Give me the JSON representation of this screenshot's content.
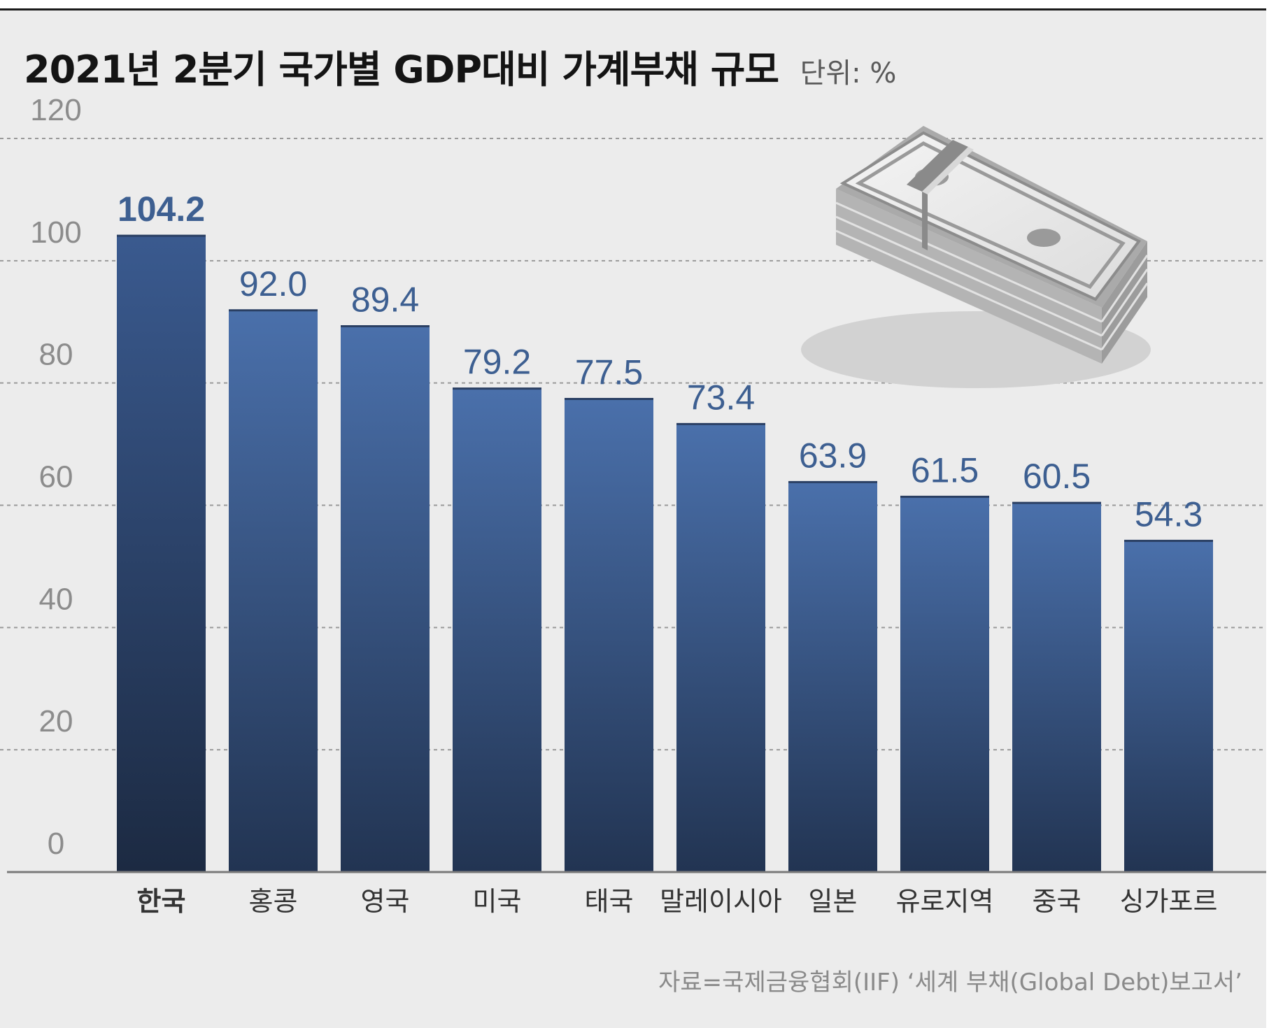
{
  "title": "2021년 2분기 국가별 GDP대비 가계부채 규모",
  "unit": "단위: %",
  "source": "자료=국제금융협회(IIF) ‘세계 부채(Global Debt)보고서’",
  "colors": {
    "bar_top": "#4a70ab",
    "bar_bottom": "#223452",
    "highlight_top": "#3a5a8f",
    "highlight_bottom": "#1c2a42",
    "value_label": "#3d5f91",
    "grid": "#9a9a9a",
    "background": "#ececec"
  },
  "chart_data": {
    "type": "bar",
    "title": "2021년 2분기 국가별 GDP대비 가계부채 규모",
    "ylabel": "단위: %",
    "xlabel": "",
    "categories": [
      "한국",
      "홍콩",
      "영국",
      "미국",
      "태국",
      "말레이시아",
      "일본",
      "유로지역",
      "중국",
      "싱가포르"
    ],
    "values": [
      104.2,
      92.0,
      89.4,
      79.2,
      77.5,
      73.4,
      63.9,
      61.5,
      60.5,
      54.3
    ],
    "value_labels": [
      "104.2",
      "92.0",
      "89.4",
      "79.2",
      "77.5",
      "73.4",
      "63.9",
      "61.5",
      "60.5",
      "54.3"
    ],
    "highlight": "한국",
    "ylim": [
      0,
      120
    ],
    "yticks": [
      0,
      20,
      40,
      60,
      80,
      100,
      120
    ],
    "grid": true,
    "legend": "none",
    "illustration": "stacked-cash-bundle-icon"
  }
}
